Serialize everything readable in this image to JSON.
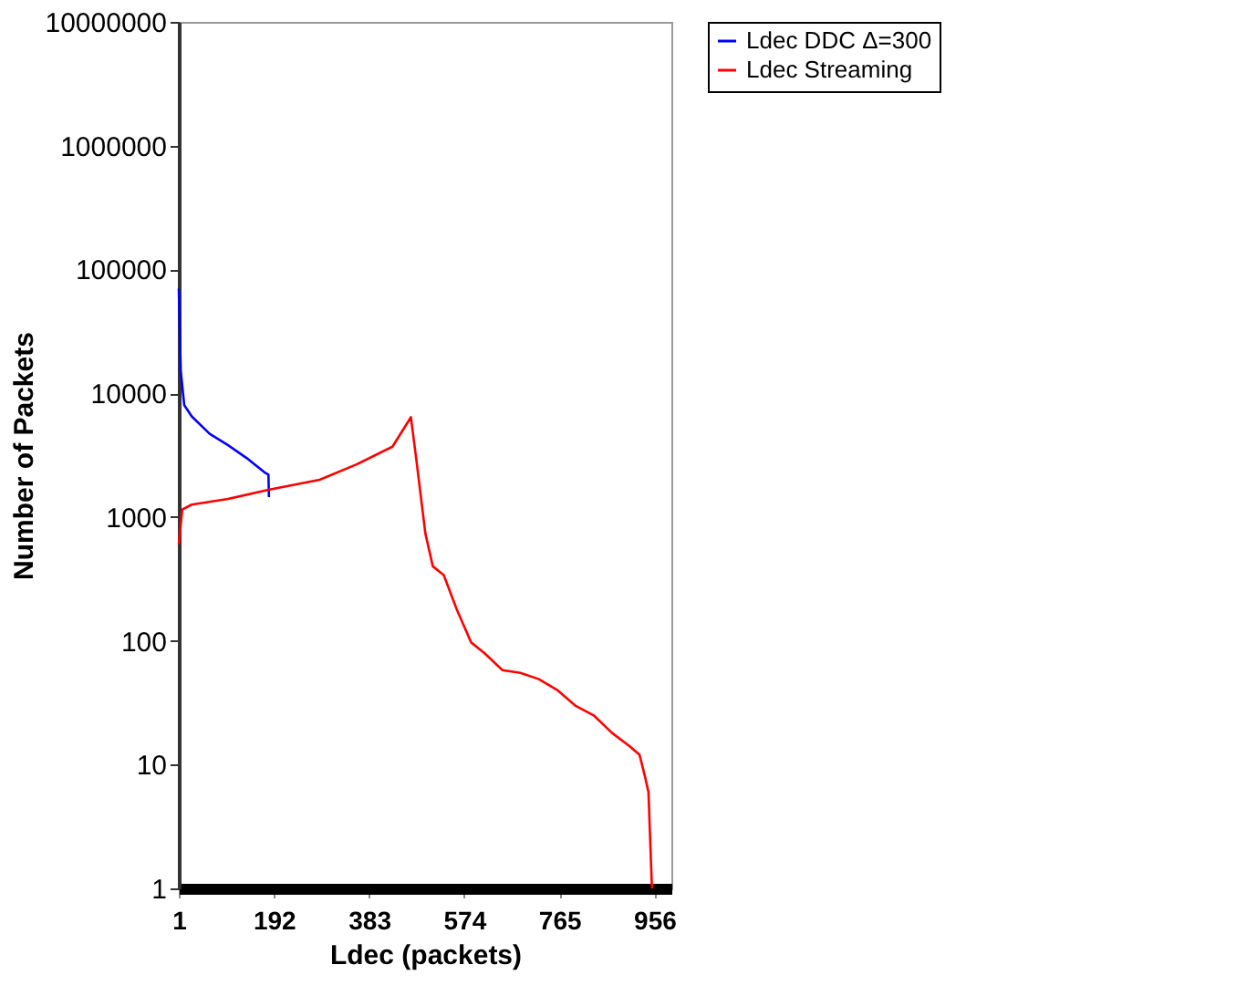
{
  "chart_data": {
    "type": "line",
    "xlabel": "Ldec (packets)",
    "ylabel": "Number of Packets",
    "log": true,
    "grid": false,
    "legend": "right",
    "marker": "none",
    "line_style": "solid",
    "xlim": [
      1,
      990
    ],
    "xticks": [
      1,
      192,
      383,
      574,
      765,
      956
    ],
    "ylim": [
      1,
      10000000
    ],
    "yticks": [
      1,
      10,
      100,
      1000,
      10000,
      100000,
      1000000,
      10000000
    ],
    "series": [
      {
        "name": "Ldec DDC Δ=300",
        "color": "#0000ff",
        "x": [
          1,
          5,
          12,
          27,
          63,
          100,
          137,
          173,
          181,
          182
        ],
        "values": [
          70000,
          15000,
          8000,
          6500,
          4700,
          3800,
          3000,
          2300,
          2200,
          1450
        ]
      },
      {
        "name": "Ldec Streaming",
        "color": "#ff0000",
        "x": [
          1,
          8,
          27,
          100,
          181,
          284,
          357,
          430,
          467,
          478,
          496,
          511,
          533,
          559,
          588,
          614,
          651,
          687,
          724,
          761,
          797,
          834,
          871,
          907,
          926,
          937,
          944,
          951
        ],
        "values": [
          600,
          1150,
          1260,
          1400,
          1660,
          2000,
          2650,
          3700,
          6400,
          2900,
          740,
          400,
          340,
          180,
          97,
          80,
          58,
          55,
          49,
          40,
          30,
          25,
          18,
          14,
          12,
          8,
          6,
          1
        ]
      }
    ]
  }
}
